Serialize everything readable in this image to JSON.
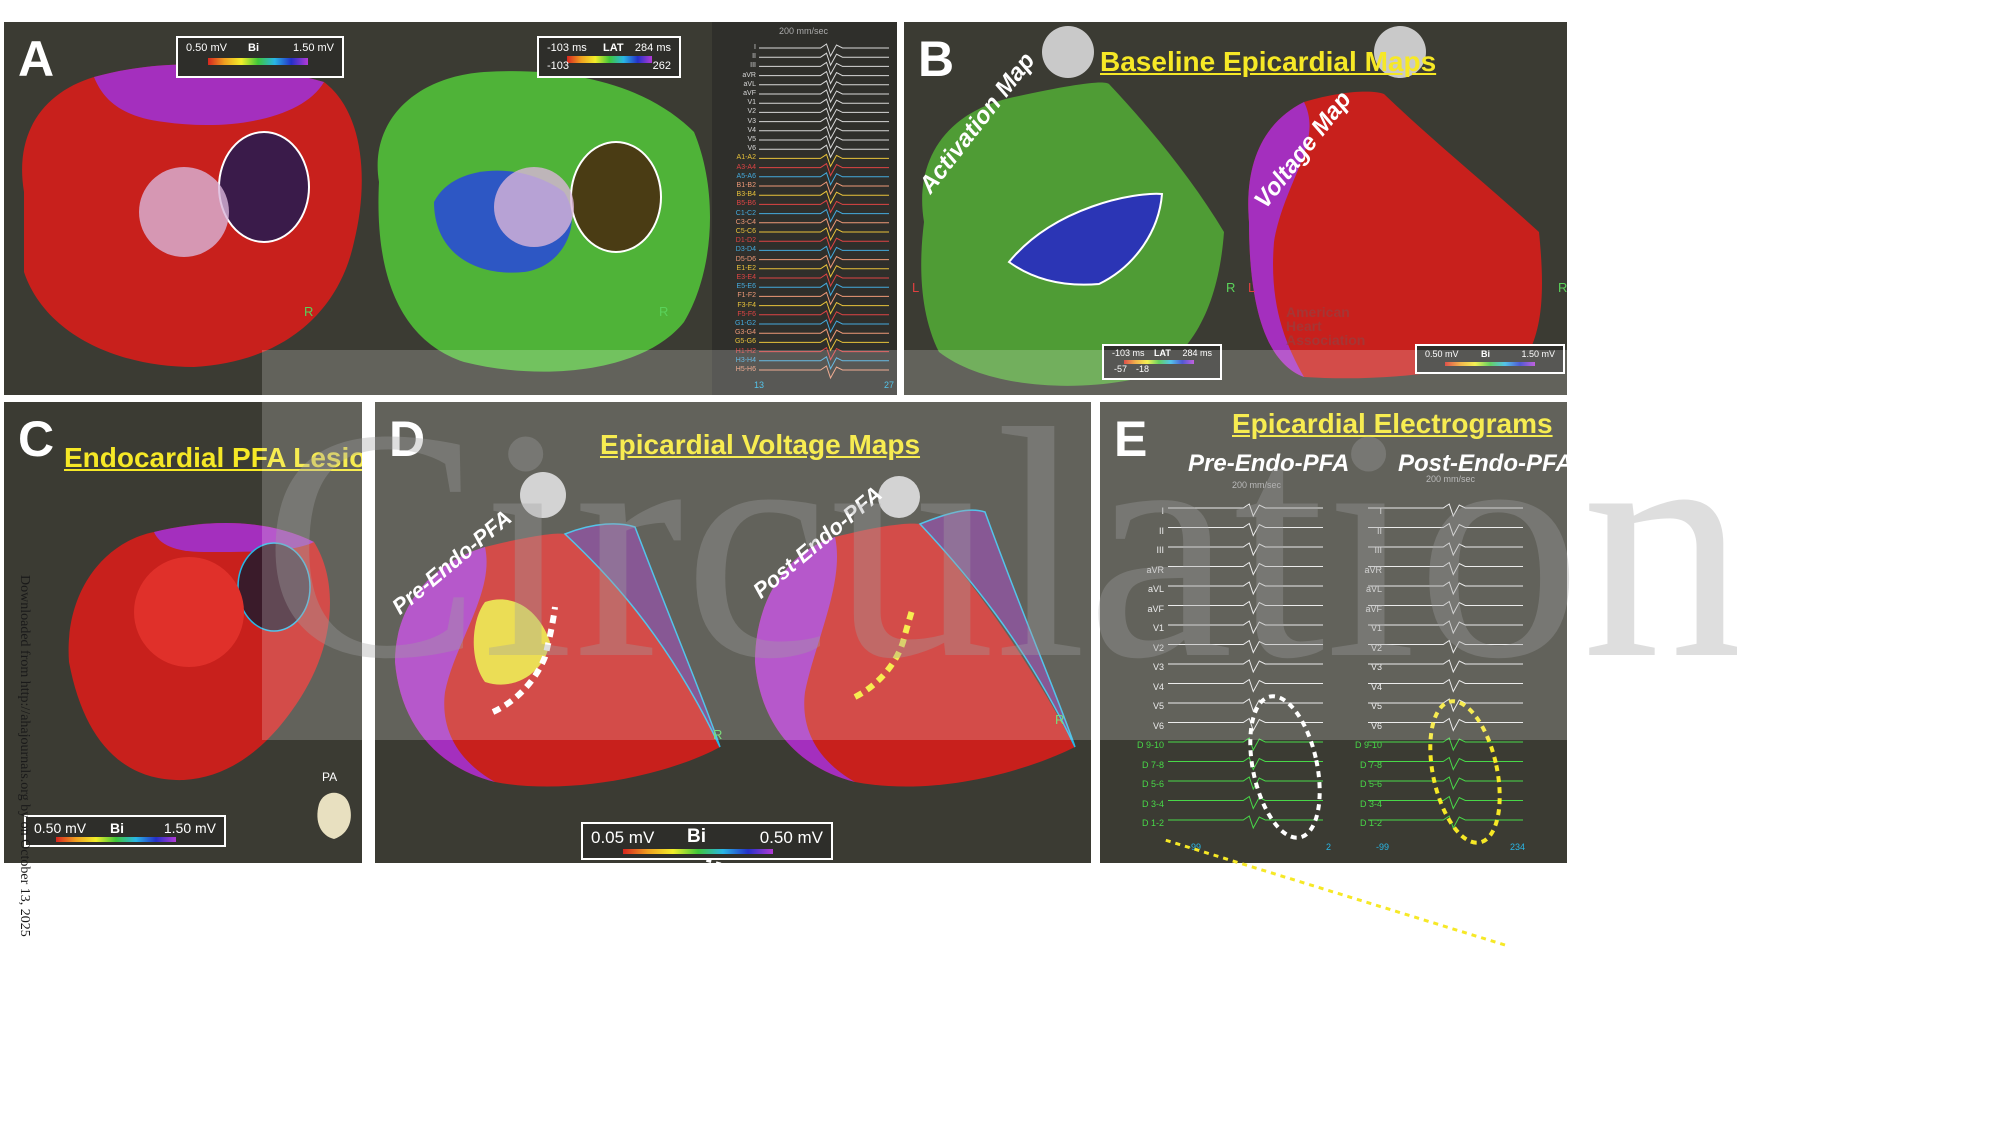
{
  "panels": {
    "A": {
      "letter": "A",
      "voltage_scale": {
        "low": "0.50 mV",
        "mid": "Bi",
        "high": "1.50 mV"
      },
      "lat_scale": {
        "low": "-103 ms",
        "mid": "LAT",
        "high": "284 ms",
        "val_low": "-103",
        "val_high": "262"
      },
      "sweep": "200 mm/sec",
      "leads": [
        "I",
        "II",
        "III",
        "aVR",
        "aVL",
        "aVF",
        "V1",
        "V2",
        "V3",
        "V4",
        "V5",
        "V6",
        "A1-A2",
        "A3-A4",
        "A5-A6",
        "B1-B2",
        "B3-B4",
        "B5-B6",
        "C1-C2",
        "C3-C4",
        "C5-C6",
        "D1-D2",
        "D3-D4",
        "D5-D6",
        "E1-E2",
        "E3-E4",
        "E5-E6",
        "F1-F2",
        "F3-F4",
        "F5-F6",
        "G1-G2",
        "G3-G4",
        "G5-G6",
        "H1-H2",
        "H3-H4",
        "H5-H6"
      ],
      "bottom_left": "13",
      "bottom_right": "27",
      "orientation": "R"
    },
    "B": {
      "letter": "B",
      "title": "Baseline Epicardial Maps",
      "activation_label": "Activation Map",
      "voltage_label": "Voltage Map",
      "lat_scale": {
        "low": "-103 ms",
        "mid": "LAT",
        "high": "284 ms",
        "val_low": "-57",
        "val_high": "-18"
      },
      "voltage_scale": {
        "low": "0.50 mV",
        "mid": "Bi",
        "high": "1.50 mV"
      },
      "watermark": "American Heart Association",
      "orientation_l": "L",
      "orientation_r": "R"
    },
    "C": {
      "letter": "C",
      "title": "Endocardial PFA Lesions",
      "voltage_scale": {
        "low": "0.50 mV",
        "mid": "Bi",
        "high": "1.50 mV"
      },
      "view": "PA"
    },
    "D": {
      "letter": "D",
      "title": "Epicardial Voltage Maps",
      "pre_label": "Pre-Endo-PFA",
      "post_label": "Post-Endo-PFA",
      "voltage_scale": {
        "low": "0.05 mV",
        "mid": "Bi",
        "high": "0.50 mV"
      },
      "orientation": "R"
    },
    "E": {
      "letter": "E",
      "title": "Epicardial Electrograms",
      "pre_label": "Pre-Endo-PFA",
      "post_label": "Post-Endo-PFA",
      "sweep": "200 mm/sec",
      "leads": [
        "I",
        "II",
        "III",
        "aVR",
        "aVL",
        "aVF",
        "V1",
        "V2",
        "V3",
        "V4",
        "V5",
        "V6",
        "D 9-10",
        "D 7-8",
        "D 5-6",
        "D 3-4",
        "D 1-2"
      ],
      "pre_bottom_left": "-99",
      "pre_bottom_right": "2",
      "post_bottom_left": "-99",
      "post_bottom_right": "234"
    }
  },
  "watermark": "Circulation",
  "download_note": "Downloaded from http://ahajournals.org by on October 13, 2025",
  "colors": {
    "panel_bg": "#3b3b33",
    "title_yellow": "#f6e826",
    "tissue_red": "#d8261f",
    "low_voltage_purple": "#9a2fb5"
  }
}
